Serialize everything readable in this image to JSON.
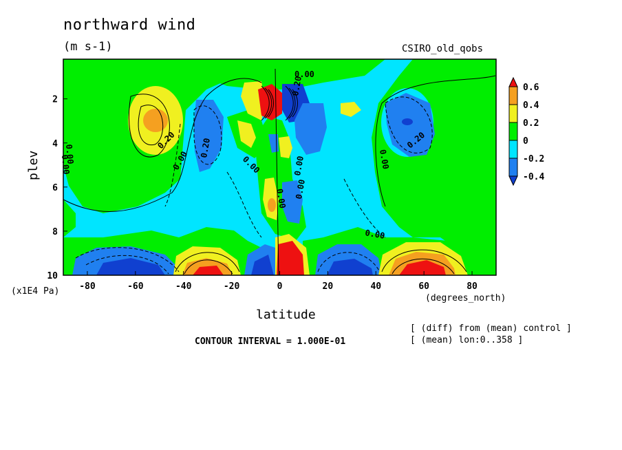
{
  "header": {
    "title": "northward wind",
    "units": "(m s-1)",
    "model": "CSIRO_old_qobs"
  },
  "axes": {
    "ylabel": "plev",
    "yunit": "(x1E4 Pa)",
    "xlabel": "latitude",
    "xunit": "(degrees_north)"
  },
  "footer": {
    "contour_interval": "CONTOUR INTERVAL = 1.000E-01",
    "note_diff": "[ (diff) from (mean) control ]",
    "note_mean": "[ (mean) lon:0..358 ]"
  },
  "chart_data": {
    "type": "heatmap",
    "title": "northward wind",
    "subtitle": "(m s-1)",
    "xlabel": "latitude",
    "ylabel": "plev",
    "xlim": [
      -90,
      90
    ],
    "ylim": [
      10,
      0.2
    ],
    "x_ticks": [
      -80,
      -60,
      -40,
      -20,
      0,
      20,
      40,
      60,
      80
    ],
    "y_ticks": [
      2,
      4,
      6,
      8,
      10
    ],
    "colorbar": {
      "levels": [
        -0.4,
        -0.2,
        0,
        0.2,
        0.4,
        0.6
      ],
      "labels": [
        "0.6",
        "0.4",
        "0.2",
        "0",
        "-0.2",
        "-0.4"
      ],
      "colors": [
        "#ee1111",
        "#f5a020",
        "#f0f020",
        "#00ee00",
        "#00e5ff",
        "#2080f0",
        "#1040d0"
      ]
    },
    "contour_labels": [
      "0.00",
      "0.20",
      "0.00",
      "0.20",
      "0.00",
      "0.00",
      "0.20",
      "0.20",
      "0.00",
      "0.00",
      "0.00",
      "0.00",
      "0.00",
      "0.00"
    ],
    "features": [
      {
        "lat": -55,
        "plev": 3.0,
        "value": 0.4
      },
      {
        "lat": 55,
        "plev": 3.0,
        "value": -0.4
      },
      {
        "lat": -30,
        "plev": 9.5,
        "value": 0.7
      },
      {
        "lat": 60,
        "plev": 9.5,
        "value": 0.7
      },
      {
        "lat": -60,
        "plev": 9.5,
        "value": -0.5
      },
      {
        "lat": 35,
        "plev": 9.5,
        "value": -0.5
      },
      {
        "lat": 0,
        "plev": 2.5,
        "value": -0.6
      },
      {
        "lat": 5,
        "plev": 9.5,
        "value": 0.8
      }
    ]
  }
}
